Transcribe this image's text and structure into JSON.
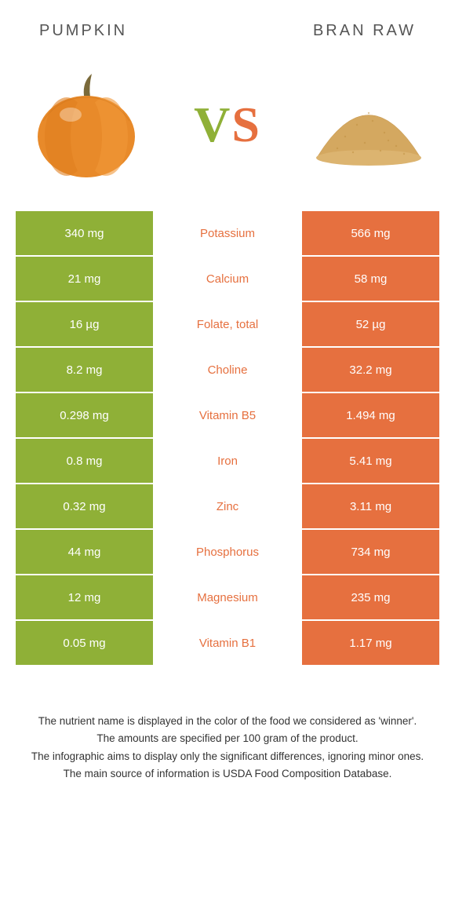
{
  "header": {
    "left_label": "Pumpkin",
    "right_label": "Bran raw"
  },
  "vs": {
    "v": "V",
    "s": "S"
  },
  "colors": {
    "pumpkin_bg": "#8fb037",
    "bran_bg": "#e6703f",
    "pumpkin_text": "#8fb037",
    "bran_text": "#e6703f",
    "vs_v": "#8fb037",
    "vs_s": "#e6703f",
    "pumpkin_body": "#e88a2a",
    "pumpkin_stem": "#7a6a3a",
    "bran_pile": "#d4a860"
  },
  "rows": [
    {
      "left": "340 mg",
      "mid": "Potassium",
      "right": "566 mg",
      "winner": "bran"
    },
    {
      "left": "21 mg",
      "mid": "Calcium",
      "right": "58 mg",
      "winner": "bran"
    },
    {
      "left": "16 µg",
      "mid": "Folate, total",
      "right": "52 µg",
      "winner": "bran"
    },
    {
      "left": "8.2 mg",
      "mid": "Choline",
      "right": "32.2 mg",
      "winner": "bran"
    },
    {
      "left": "0.298 mg",
      "mid": "Vitamin B5",
      "right": "1.494 mg",
      "winner": "bran"
    },
    {
      "left": "0.8 mg",
      "mid": "Iron",
      "right": "5.41 mg",
      "winner": "bran"
    },
    {
      "left": "0.32 mg",
      "mid": "Zinc",
      "right": "3.11 mg",
      "winner": "bran"
    },
    {
      "left": "44 mg",
      "mid": "Phosphorus",
      "right": "734 mg",
      "winner": "bran"
    },
    {
      "left": "12 mg",
      "mid": "Magnesium",
      "right": "235 mg",
      "winner": "bran"
    },
    {
      "left": "0.05 mg",
      "mid": "Vitamin B1",
      "right": "1.17 mg",
      "winner": "bran"
    }
  ],
  "footer": {
    "line1": "The nutrient name is displayed in the color of the food we considered as 'winner'.",
    "line2": "The amounts are specified per 100 gram of the product.",
    "line3": "The infographic aims to display only the significant differences, ignoring minor ones.",
    "line4": "The main source of information is USDA Food Composition Database."
  }
}
